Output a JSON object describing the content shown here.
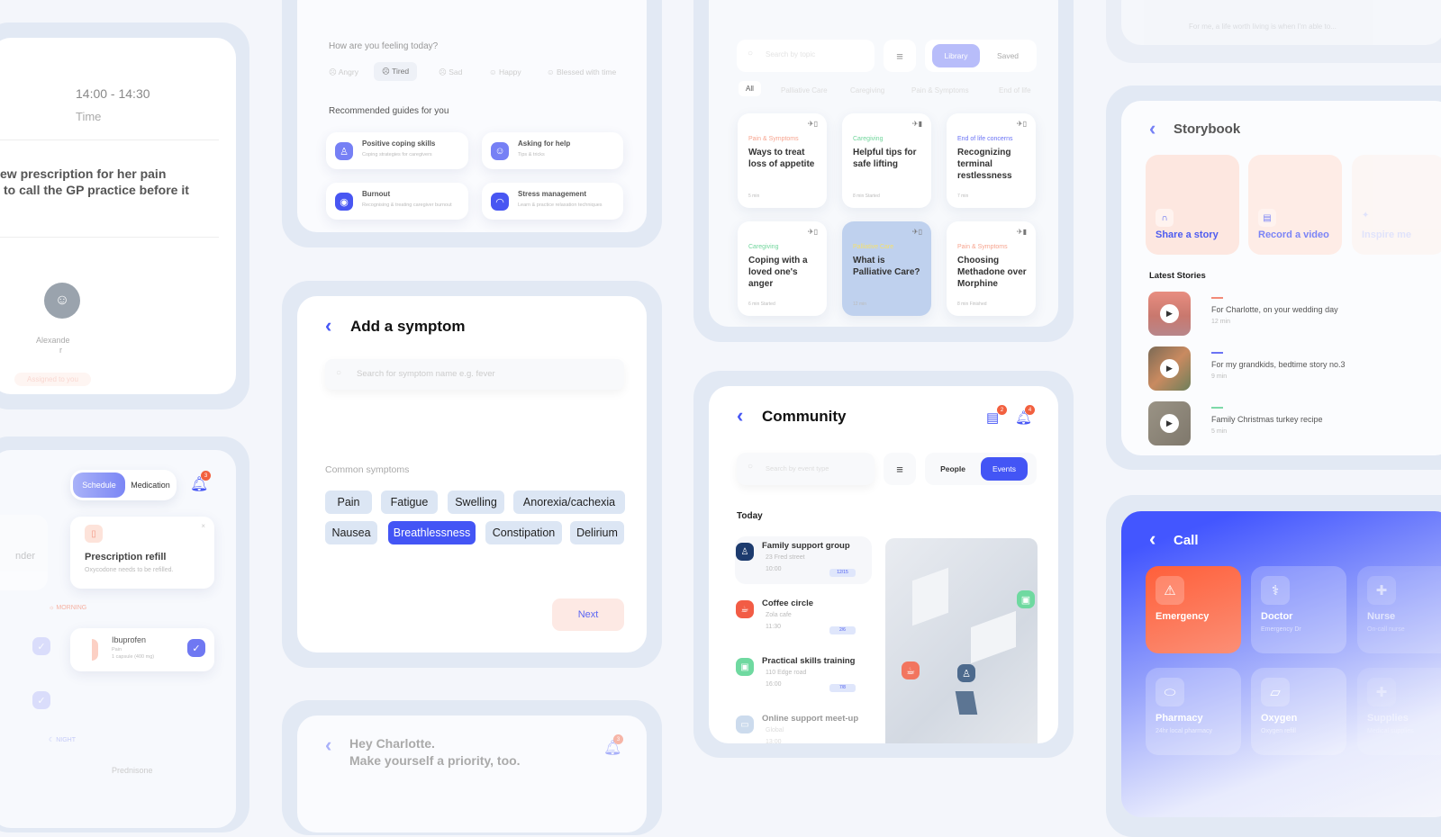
{
  "appointment": {
    "time": "14:00 - 14:30",
    "time_label": "Time",
    "note_line1": "ew prescription for her pain",
    "note_line2": "to call the GP practice before it",
    "assignee": "Alexande",
    "assignee_wrap": "r",
    "assigned_label": "Assigned to you"
  },
  "schedule": {
    "tabs": [
      "Schedule",
      "Medication"
    ],
    "active_tab": "Schedule",
    "notification_count": "3",
    "reminder_partial": "nder",
    "refill_title": "Prescription refill",
    "refill_text": "Oxycodone needs to be refilled.",
    "morning_label": "MORNING",
    "night_label": "NIGHT",
    "meds": [
      {
        "name": "Ibuprofen",
        "purpose": "Pain",
        "dose": "1 capsule (400 mg)"
      },
      {
        "name": "Prednisone"
      }
    ]
  },
  "feelings": {
    "question": "How are you feeling today?",
    "options": [
      "Angry",
      "Tired",
      "Sad",
      "Happy",
      "Blessed with time"
    ],
    "selected": "Tired",
    "guides_title": "Recommended guides for you",
    "guides": [
      {
        "title": "Positive coping skills",
        "subtitle": "Coping strategies for caregivers"
      },
      {
        "title": "Asking for help",
        "subtitle": "Tips & tricks"
      },
      {
        "title": "Burnout",
        "subtitle": "Recognising & treating caregiver burnout"
      },
      {
        "title": "Stress management",
        "subtitle": "Learn & practice relaxation techniques"
      }
    ]
  },
  "symptom": {
    "title": "Add a symptom",
    "search_placeholder": "Search for symptom name e.g. fever",
    "common_label": "Common symptoms",
    "chips": [
      "Pain",
      "Fatigue",
      "Swelling",
      "Anorexia/cachexia",
      "Nausea",
      "Breathlessness",
      "Constipation",
      "Delirium"
    ],
    "selected": "Breathlessness",
    "next": "Next"
  },
  "greeting": {
    "line1": "Hey Charlotte.",
    "line2": "Make yourself a priority, too.",
    "badge": "3"
  },
  "library": {
    "search_placeholder": "Search by topic",
    "tabs": [
      "Library",
      "Saved"
    ],
    "active_tab": "Library",
    "filters": [
      "All",
      "Palliative Care",
      "Caregiving",
      "Pain & Symptoms",
      "End of life"
    ],
    "cards": [
      {
        "category": "Pain & Symptoms",
        "title": "Ways to treat loss of appetite",
        "meta": "5 min",
        "color": "#f7a48f"
      },
      {
        "category": "Caregiving",
        "title": "Helpful tips for safe lifting",
        "meta": "8 min   Started",
        "color": "#6fd59b"
      },
      {
        "category": "End of life concerns",
        "title": "Recognizing terminal restlessness",
        "meta": "7 min",
        "color": "#6a73f5"
      },
      {
        "category": "Caregiving",
        "title": "Coping with a loved one's anger",
        "meta": "6 min   Started",
        "color": "#6fd59b"
      },
      {
        "category": "Palliative Care",
        "title": "What is Palliative Care?",
        "meta": "12 min",
        "color": "#f5e06d"
      },
      {
        "category": "Pain & Symptoms",
        "title": "Choosing Methadone over Morphine",
        "meta": "8 min   Finished",
        "color": "#f7a48f"
      }
    ]
  },
  "community": {
    "title": "Community",
    "chat_badge": "2",
    "bell_badge": "4",
    "search_placeholder": "Search by event type",
    "tabs": [
      "People",
      "Events"
    ],
    "active_tab": "Events",
    "section": "Today",
    "events": [
      {
        "name": "Family support group",
        "location": "23 Fred street",
        "time": "10:00",
        "capacity": "12/15",
        "color": "#1d3b6e"
      },
      {
        "name": "Coffee circle",
        "location": "Zola cafe",
        "time": "11:30",
        "capacity": "2/6",
        "color": "#f25c45"
      },
      {
        "name": "Practical skills training",
        "location": "110 Edge road",
        "time": "16:00",
        "capacity": "7/8",
        "color": "#6fd9a0"
      },
      {
        "name": "Online support meet-up",
        "location": "Global",
        "time": "13:00",
        "capacity": "",
        "color": "#9ab8dc"
      }
    ]
  },
  "quote": {
    "text": "For me, a life worth living is when I'm able to..."
  },
  "storybook": {
    "title": "Storybook",
    "actions": [
      "Share a story",
      "Record a video",
      "Inspire me"
    ],
    "latest_label": "Latest Stories",
    "stories": [
      {
        "title": "For Charlotte, on your wedding day",
        "duration": "12 min",
        "color": "#f28a78"
      },
      {
        "title": "For my grandkids, bedtime story no.3",
        "duration": "9 min",
        "color": "#6a73f5"
      },
      {
        "title": "Family Christmas turkey recipe",
        "duration": "5 min",
        "color": "#7dd9a8"
      }
    ]
  },
  "call": {
    "title": "Call",
    "options": [
      {
        "name": "Emergency",
        "sub": ""
      },
      {
        "name": "Doctor",
        "sub": "Emergency Dr"
      },
      {
        "name": "Nurse",
        "sub": "On-call nurse"
      },
      {
        "name": "Pharmacy",
        "sub": "24hr local pharmacy"
      },
      {
        "name": "Oxygen",
        "sub": "Oxygen refill"
      },
      {
        "name": "Supplies",
        "sub": "Medical supplies"
      }
    ]
  },
  "colors": {
    "accent": "#4355f5",
    "emergency": "#ff5f3a",
    "frame": "#e2e9f4"
  }
}
